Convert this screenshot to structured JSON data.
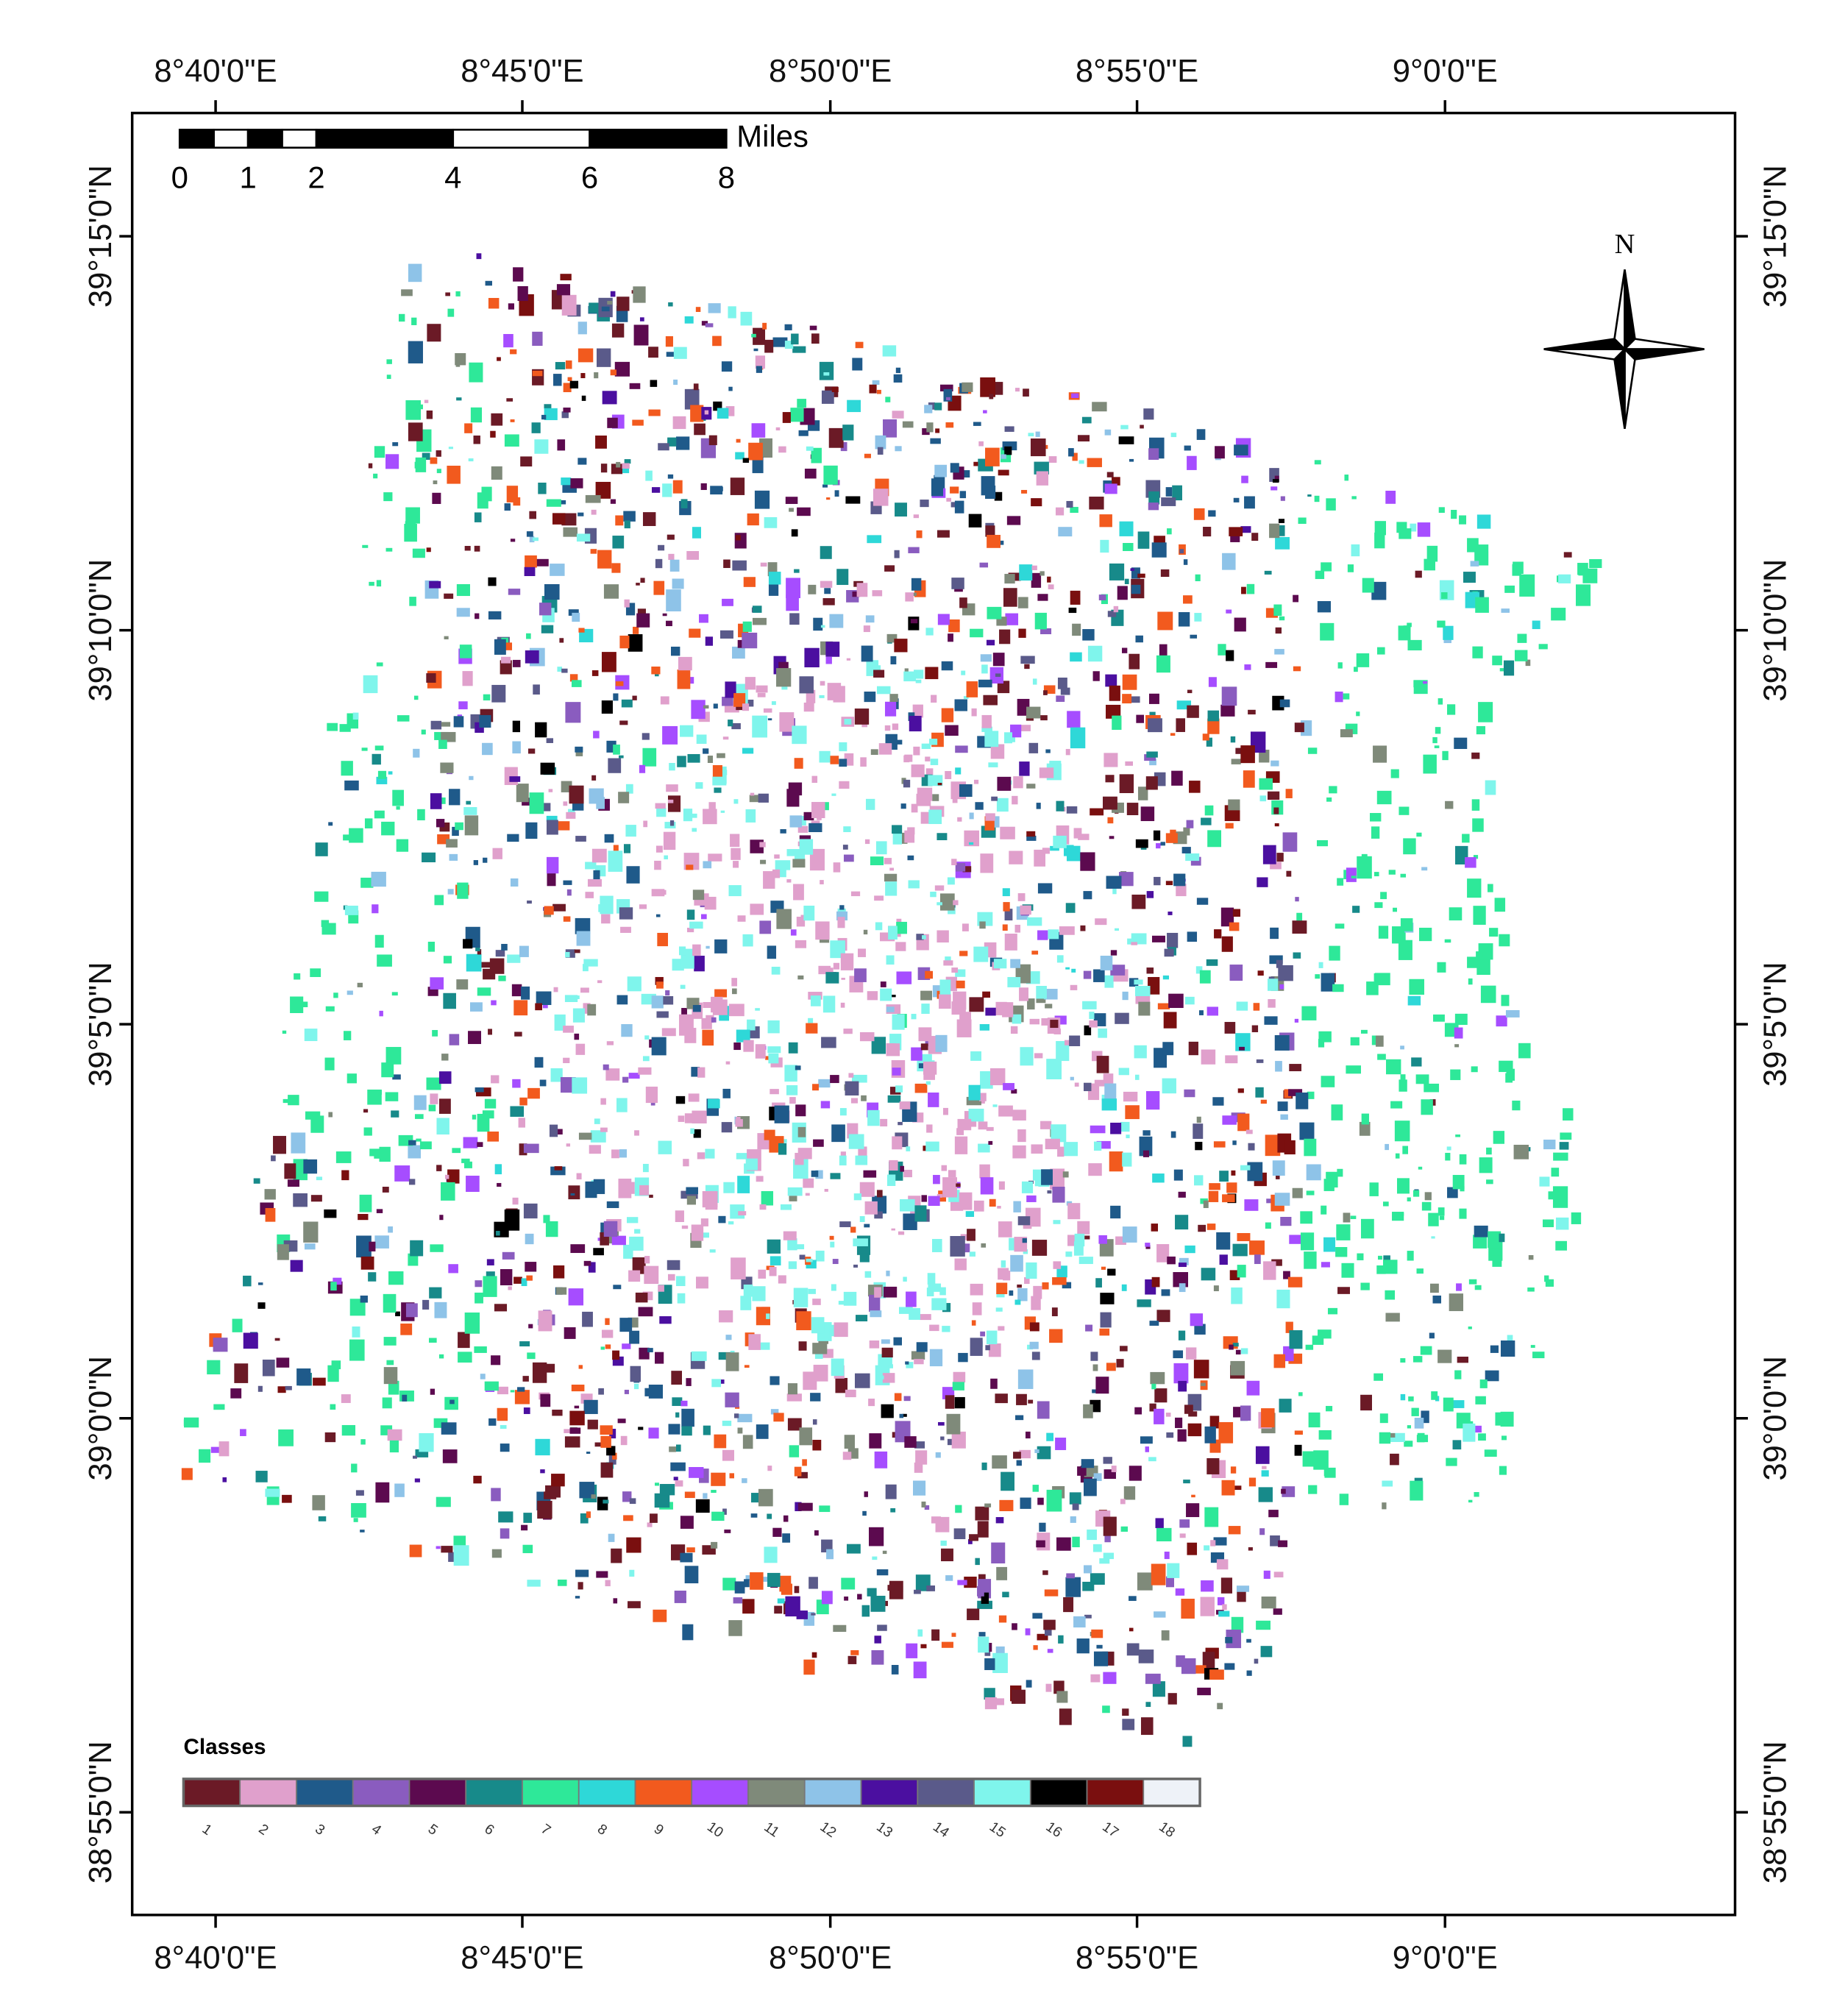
{
  "map": {
    "longitude_labels": [
      "8°40'0\"E",
      "8°45'0\"E",
      "8°50'0\"E",
      "8°55'0\"E",
      "9°0'0\"E"
    ],
    "latitude_labels": [
      "39°15'0\"N",
      "39°10'0\"N",
      "39°5'0\"N",
      "39°0'0\"N",
      "38°55'0\"N"
    ],
    "scale_bar": {
      "unit": "Miles",
      "ticks": [
        0,
        1,
        2,
        4,
        6,
        8
      ]
    },
    "north_arrow": "N",
    "legend": {
      "title": "Classes",
      "classes": [
        {
          "label": "1",
          "color": "#6b1a26"
        },
        {
          "label": "2",
          "color": "#e0a0cc"
        },
        {
          "label": "3",
          "color": "#1f5a8a"
        },
        {
          "label": "4",
          "color": "#8a5cbf"
        },
        {
          "label": "5",
          "color": "#5c0a4f"
        },
        {
          "label": "6",
          "color": "#178a8a"
        },
        {
          "label": "7",
          "color": "#2ee899"
        },
        {
          "label": "8",
          "color": "#2ed8d8"
        },
        {
          "label": "9",
          "color": "#f25a1e"
        },
        {
          "label": "10",
          "color": "#a64dff"
        },
        {
          "label": "11",
          "color": "#7f8a7a"
        },
        {
          "label": "12",
          "color": "#8ec3e8"
        },
        {
          "label": "13",
          "color": "#4b0fa0"
        },
        {
          "label": "14",
          "color": "#5a5a8a"
        },
        {
          "label": "15",
          "color": "#7ff5ec"
        },
        {
          "label": "16",
          "color": "#000000"
        },
        {
          "label": "17",
          "color": "#7a0f0f"
        },
        {
          "label": "18",
          "color": "#eef2f8"
        }
      ]
    }
  }
}
